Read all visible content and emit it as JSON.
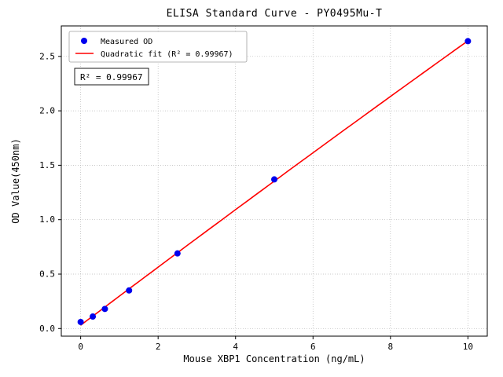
{
  "chart_data": {
    "type": "scatter",
    "title": "ELISA Standard Curve - PY0495Mu-T",
    "xlabel": "Mouse XBP1 Concentration (ng/mL)",
    "ylabel": "OD Value(450nm)",
    "xlim": [
      -0.5,
      10.5
    ],
    "ylim": [
      -0.07,
      2.78
    ],
    "xticks": [
      0,
      2,
      4,
      6,
      8,
      10
    ],
    "yticks": [
      0.0,
      0.5,
      1.0,
      1.5,
      2.0,
      2.5
    ],
    "grid": true,
    "legend_position": "upper-left",
    "series": [
      {
        "name": "Measured OD",
        "type": "scatter",
        "color": "#0000ee",
        "x": [
          0,
          0.313,
          0.625,
          1.25,
          2.5,
          5,
          10
        ],
        "y": [
          0.06,
          0.11,
          0.18,
          0.35,
          0.69,
          1.37,
          2.64
        ]
      },
      {
        "name": "Quadratic fit (R² = 0.99967)",
        "type": "quadratic-fit",
        "color": "#ff0000"
      }
    ],
    "annotation": "R² = 0.99967",
    "colors": {
      "grid": "#b8b8b8",
      "axis": "#000000",
      "legend_border": "#a0a0a0",
      "annotation_border": "#000000"
    }
  }
}
